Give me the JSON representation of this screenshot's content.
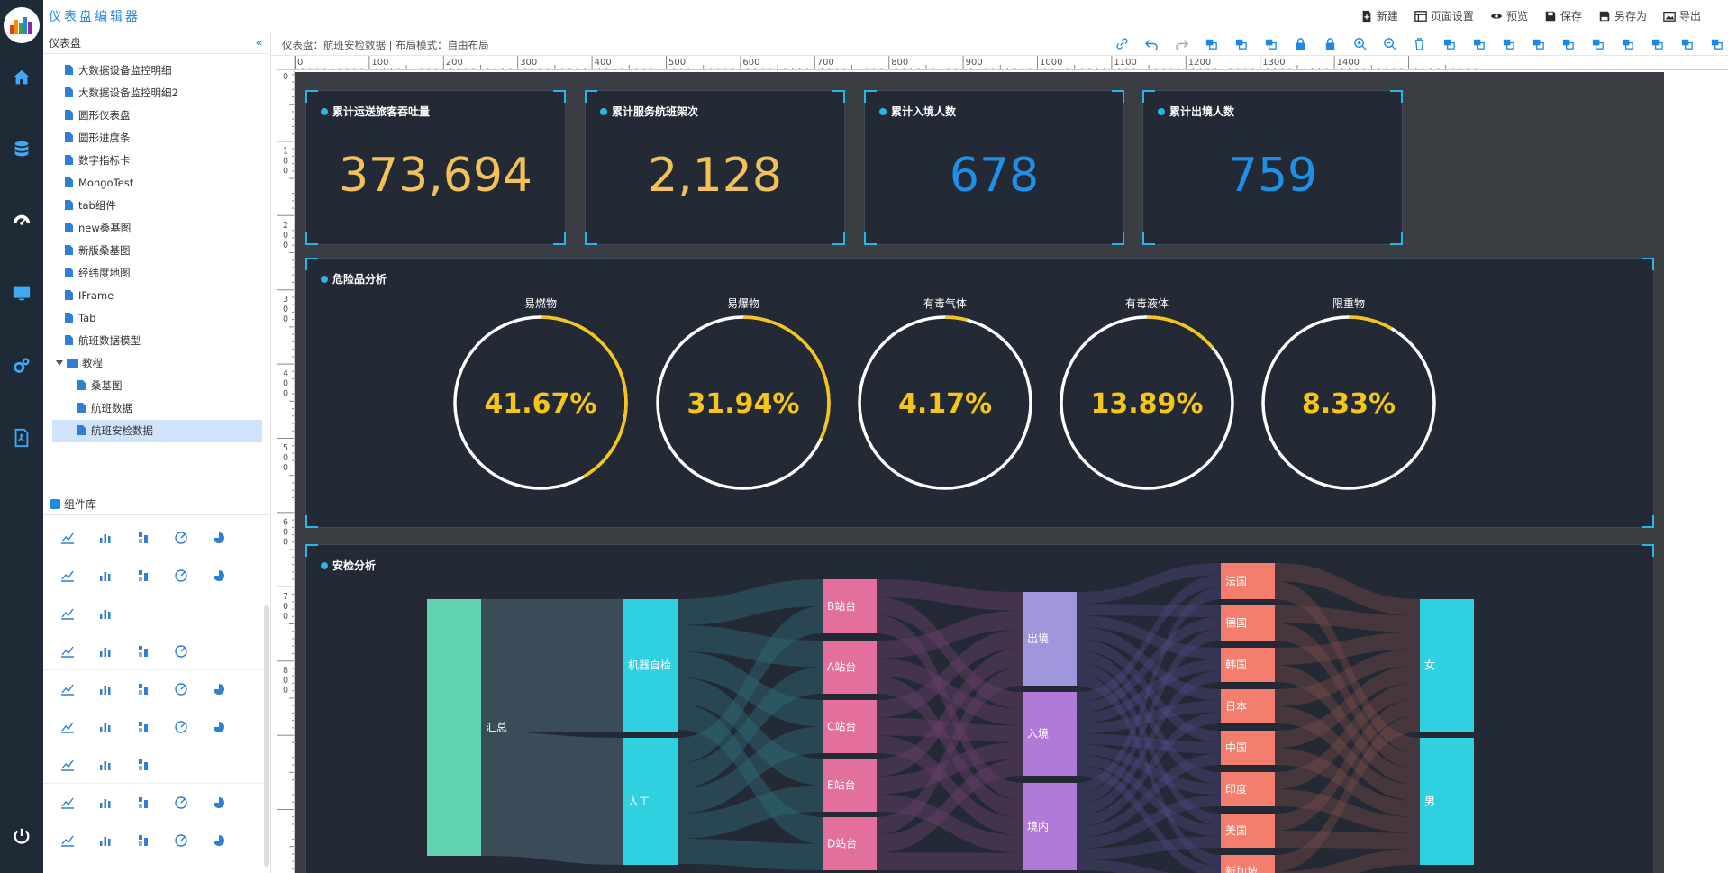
{
  "app": {
    "title": "仪表盘编辑器"
  },
  "top_actions": [
    {
      "label": "新建",
      "icon": "new-icon"
    },
    {
      "label": "页面设置",
      "icon": "page-settings-icon"
    },
    {
      "label": "预览",
      "icon": "eye-icon"
    },
    {
      "label": "保存",
      "icon": "save-icon"
    },
    {
      "label": "另存为",
      "icon": "save-as-icon"
    },
    {
      "label": "导出",
      "icon": "export-icon"
    }
  ],
  "left_panel": {
    "header": "仪表盘",
    "tree": [
      {
        "label": "大数据设备监控明细",
        "type": "file",
        "level": 1
      },
      {
        "label": "大数据设备监控明细2",
        "type": "file",
        "level": 1
      },
      {
        "label": "圆形仪表盘",
        "type": "file",
        "level": 1
      },
      {
        "label": "圆形进度条",
        "type": "file",
        "level": 1
      },
      {
        "label": "数字指标卡",
        "type": "file",
        "level": 1
      },
      {
        "label": "MongoTest",
        "type": "file",
        "level": 1
      },
      {
        "label": "tab组件",
        "type": "file",
        "level": 1
      },
      {
        "label": "new桑基图",
        "type": "file",
        "level": 1
      },
      {
        "label": "新版桑基图",
        "type": "file",
        "level": 1
      },
      {
        "label": "经纬度地图",
        "type": "file",
        "level": 1
      },
      {
        "label": "IFrame",
        "type": "file",
        "level": 1
      },
      {
        "label": "Tab",
        "type": "file",
        "level": 1
      },
      {
        "label": "航班数据模型",
        "type": "file",
        "level": 1
      },
      {
        "label": "教程",
        "type": "folder",
        "level": 0
      },
      {
        "label": "桑基图",
        "type": "file",
        "level": 2
      },
      {
        "label": "航班数据",
        "type": "file",
        "level": 2
      },
      {
        "label": "航班安检数据",
        "type": "file",
        "level": 2,
        "selected": true
      }
    ],
    "component_header": "组件库"
  },
  "breadcrumb": "仪表盘：航班安检数据 | 布局模式：自由布局",
  "ruler": {
    "h": [
      "0",
      "100",
      "200",
      "300",
      "400",
      "500",
      "600",
      "700",
      "800",
      "900",
      "1000",
      "1100",
      "1200",
      "1300",
      "1400"
    ],
    "v": [
      "0",
      "100",
      "200",
      "300",
      "400",
      "500",
      "600",
      "700",
      "800"
    ]
  },
  "kpis": [
    {
      "title": "累计运送旅客吞吐量",
      "value": "373,694",
      "color": "#f3c15a"
    },
    {
      "title": "累计服务航班架次",
      "value": "2,128",
      "color": "#f3c15a"
    },
    {
      "title": "累计入境人数",
      "value": "678",
      "color": "#1e90e8"
    },
    {
      "title": "累计出境人数",
      "value": "759",
      "color": "#1e90e8"
    }
  ],
  "hazard": {
    "title": "危险品分析",
    "items": [
      {
        "label": "易燃物",
        "value": "41.67%",
        "pct": 41.67
      },
      {
        "label": "易爆物",
        "value": "31.94%",
        "pct": 31.94
      },
      {
        "label": "有毒气体",
        "value": "4.17%",
        "pct": 4.17
      },
      {
        "label": "有毒液体",
        "value": "13.89%",
        "pct": 13.89
      },
      {
        "label": "限重物",
        "value": "8.33%",
        "pct": 8.33
      }
    ],
    "ring_color": "#f5c518"
  },
  "security": {
    "title": "安检分析",
    "nodes": [
      {
        "name": "汇总",
        "col": 0,
        "color": "#5fd3b0"
      },
      {
        "name": "机器自检",
        "col": 1,
        "color": "#2fd0e0"
      },
      {
        "name": "人工",
        "col": 1,
        "color": "#2fd0e0"
      },
      {
        "name": "B站台",
        "col": 2,
        "color": "#e3709c"
      },
      {
        "name": "A站台",
        "col": 2,
        "color": "#e3709c"
      },
      {
        "name": "C站台",
        "col": 2,
        "color": "#e3709c"
      },
      {
        "name": "E站台",
        "col": 2,
        "color": "#e3709c"
      },
      {
        "name": "D站台",
        "col": 2,
        "color": "#e3709c"
      },
      {
        "name": "出境",
        "col": 3,
        "color": "#a096dc"
      },
      {
        "name": "入境",
        "col": 3,
        "color": "#b07ad8"
      },
      {
        "name": "境内",
        "col": 3,
        "color": "#b07ad8"
      },
      {
        "name": "法国",
        "col": 4,
        "color": "#f47e6e"
      },
      {
        "name": "德国",
        "col": 4,
        "color": "#f47e6e"
      },
      {
        "name": "韩国",
        "col": 4,
        "color": "#f47e6e"
      },
      {
        "name": "日本",
        "col": 4,
        "color": "#f47e6e"
      },
      {
        "name": "中国",
        "col": 4,
        "color": "#f47e6e"
      },
      {
        "name": "印度",
        "col": 4,
        "color": "#f47e6e"
      },
      {
        "name": "美国",
        "col": 4,
        "color": "#f47e6e"
      },
      {
        "name": "新加坡",
        "col": 4,
        "color": "#f47e6e"
      },
      {
        "name": "女",
        "col": 5,
        "color": "#2fd0e0"
      },
      {
        "name": "男",
        "col": 5,
        "color": "#2fd0e0"
      }
    ]
  }
}
